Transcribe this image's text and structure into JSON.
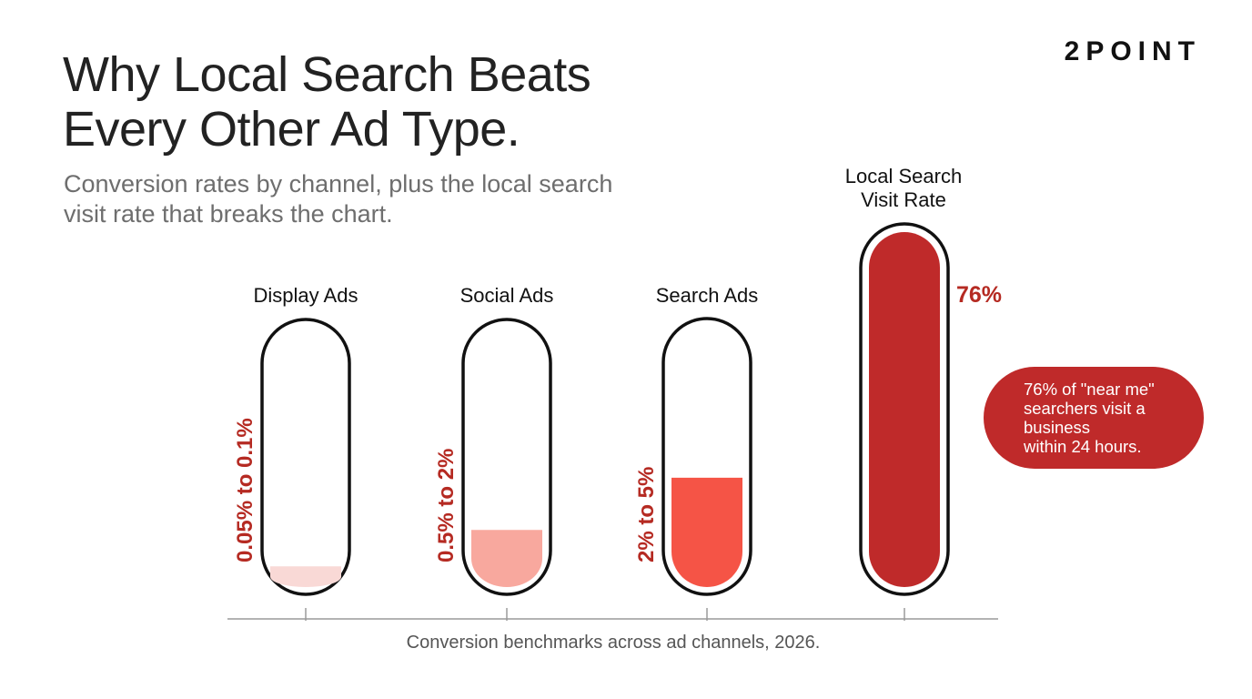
{
  "header": {
    "title_line1": "Why Local Search Beats",
    "title_line2": "Every Other Ad Type.",
    "subtitle_line1": "Conversion rates by channel, plus the local search",
    "subtitle_line2": "visit rate that breaks the chart.",
    "logo": "2POINT"
  },
  "caption": "Conversion benchmarks across ad channels, 2026.",
  "callout": {
    "lines": [
      "76% of \"near me\"",
      "searchers visit a",
      "business",
      "within 24 hours."
    ]
  },
  "chart_data": {
    "type": "bar",
    "categories": [
      "Display Ads",
      "Social Ads",
      "Search Ads",
      "Local Search Visit Rate"
    ],
    "series": [
      {
        "values": [
          0.1,
          2,
          5,
          76
        ],
        "labels": [
          "0.05% to 0.1%",
          "0.5% to 2%",
          "2% to 5%",
          "76%"
        ],
        "colors": [
          "#f9d9d6",
          "#f8a89e",
          "#f55446",
          "#bf2a2a"
        ]
      }
    ],
    "fill_fraction": [
      0.08,
      0.22,
      0.42,
      1.0
    ],
    "legend": "none",
    "grid": false
  }
}
